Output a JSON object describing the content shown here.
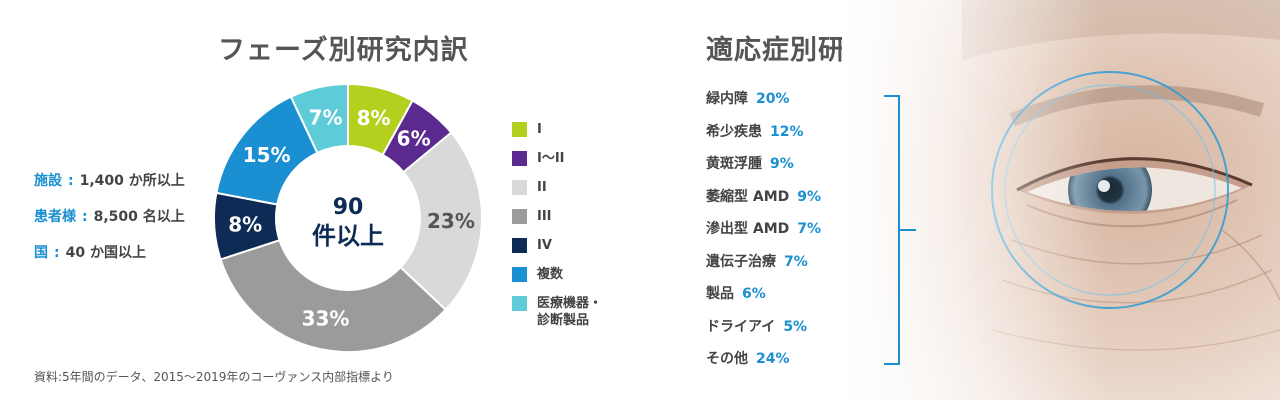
{
  "phase_title": "フェーズ別研究内訳",
  "indication_title": "適応症別研究内訳",
  "stats": [
    {
      "label": "施設",
      "sep": ":",
      "value": "1,400 か所以上"
    },
    {
      "label": "患者様",
      "sep": ":",
      "value": "8,500 名以上"
    },
    {
      "label": "国",
      "sep": ":",
      "value": "40 か国以上"
    }
  ],
  "center_label": {
    "line1": "90",
    "line2": "件以上"
  },
  "source": "資料:5年間のデータ、2015〜2019年のコーヴァンス内部指標より",
  "colors": {
    "accent": "#1a8fd1",
    "navy": "#0d2b55"
  },
  "chart_data": [
    {
      "type": "pie",
      "title": "フェーズ別研究内訳",
      "donut": true,
      "legend_position": "right",
      "series": [
        {
          "name": "I",
          "value": 8,
          "label": "8%",
          "color": "#b5cf1e"
        },
        {
          "name": "I〜II",
          "value": 6,
          "label": "6%",
          "color": "#5a2a8e"
        },
        {
          "name": "II",
          "value": 23,
          "label": "23%",
          "color": "#d9d9d9"
        },
        {
          "name": "III",
          "value": 33,
          "label": "33%",
          "color": "#9b9b9b"
        },
        {
          "name": "IV",
          "value": 8,
          "label": "8%",
          "color": "#0d2b55"
        },
        {
          "name": "複数",
          "value": 15,
          "label": "15%",
          "color": "#1a8fd1"
        },
        {
          "name": "医療機器・\n診断製品",
          "value": 7,
          "label": "7%",
          "color": "#5ecbd8"
        }
      ]
    },
    {
      "type": "table",
      "title": "適応症別研究内訳",
      "rows": [
        {
          "name": "緑内障",
          "value": 20,
          "label": "20%"
        },
        {
          "name": "希少疾患",
          "value": 12,
          "label": "12%"
        },
        {
          "name": "黄斑浮腫",
          "value": 9,
          "label": "9%"
        },
        {
          "name": "萎縮型 AMD",
          "value": 9,
          "label": "9%"
        },
        {
          "name": "滲出型 AMD",
          "value": 7,
          "label": "7%"
        },
        {
          "name": "遺伝子治療",
          "value": 7,
          "label": "7%"
        },
        {
          "name": "製品",
          "value": 6,
          "label": "6%"
        },
        {
          "name": "ドライアイ",
          "value": 5,
          "label": "5%"
        },
        {
          "name": "その他",
          "value": 24,
          "label": "24%"
        }
      ]
    }
  ]
}
